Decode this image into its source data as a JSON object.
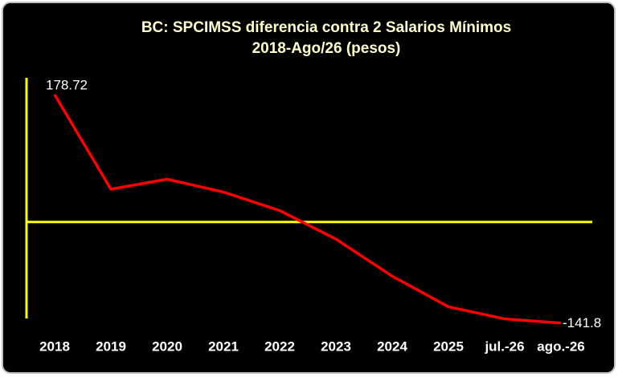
{
  "chart_data": {
    "type": "line",
    "title": "BC: SPCIMSS diferencia contra 2 Salarios Mínimos",
    "subtitle": "2018-Ago/26  (pesos)",
    "categories": [
      "2018",
      "2019",
      "2020",
      "2021",
      "2022",
      "2023",
      "2024",
      "2025",
      "jul.-26",
      "ago.-26"
    ],
    "values": [
      178.72,
      46,
      60,
      42,
      16,
      -24,
      -76,
      -119,
      -136,
      -141.8
    ],
    "color": "#ff0000",
    "axis_color": "#ffff00",
    "ylim": [
      -150,
      200
    ]
  }
}
